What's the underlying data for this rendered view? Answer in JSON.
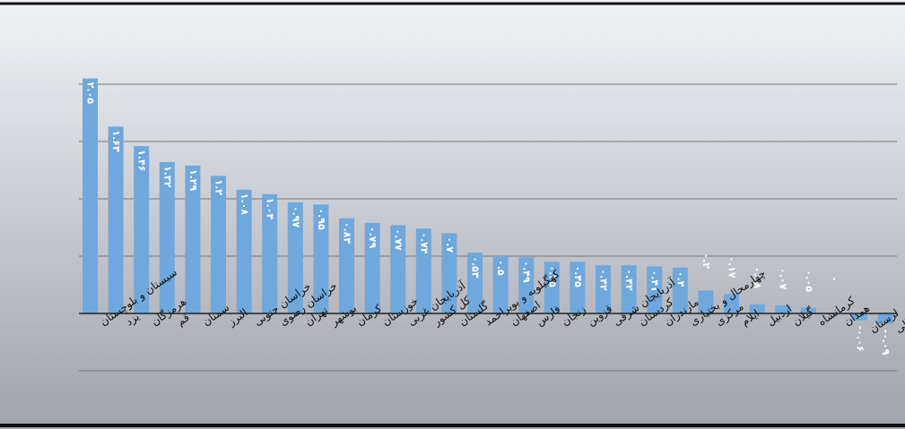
{
  "chart_data": {
    "type": "bar",
    "title": "",
    "xlabel": "",
    "ylabel": "",
    "ylim": [
      -1,
      2.2
    ],
    "grid": true,
    "legend": "none",
    "categories": [
      "سیستان و بلوچستان",
      "یزد",
      "هرمزگان",
      "قم",
      "سمنان",
      "البرز",
      "خراسان جنوبی",
      "خراسان رضوی",
      "تهران",
      "بوشهر",
      "کرمان",
      "خوزستان",
      "آذربایجان غربی",
      "کل کشور",
      "گلستان",
      "کهگیلویه و بویراحمد",
      "اصفهان",
      "فارس",
      "زنجان",
      "قزوین",
      "آذربایجان شرقی",
      "کردستان",
      "مازندران",
      "چهارمحال و بختیاری",
      "مرکزی",
      "ایلام",
      "اردبیل",
      "گیلان",
      "کرمانشاه",
      "همدان",
      "لرستان",
      "خراسان شمالی"
    ],
    "values": [
      2.05,
      1.63,
      1.46,
      1.32,
      1.29,
      1.2,
      1.08,
      1.04,
      0.97,
      0.95,
      0.83,
      0.79,
      0.77,
      0.74,
      0.7,
      0.53,
      0.5,
      0.49,
      0.45,
      0.45,
      0.42,
      0.42,
      0.41,
      0.4,
      0.2,
      0.17,
      0.08,
      0.07,
      0.05,
      0.0,
      -0.06,
      -0.09
    ],
    "value_labels": [
      "۲.۰۵",
      "۱.۶۳",
      "۱.۴۶",
      "۱.۳۲",
      "۱.۲۹",
      "۱.۲",
      "۱.۰۸",
      "۱.۰۴",
      "۰.۹۷",
      "۰.۹۵",
      "۰.۸۳",
      "۰.۷۹",
      "۰.۷۷",
      "۰.۷۴",
      "۰.۷",
      "۰.۵۳",
      "۰.۵",
      "۰.۴۹",
      "۰.۴۵",
      "۰.۴۵",
      "۰.۴۲",
      "۰.۴۲",
      "۰.۴۱",
      "۰.۴",
      "۰.۲",
      "۰.۱۷",
      "۰.۰۸",
      "۰.۰۷",
      "۰.۰۵",
      "۰",
      "-۰.۰۶",
      "-۰.۰۹"
    ],
    "bar_color": "#6fa8dc",
    "background_top": "#f0f2f6",
    "background_bottom": "#9fa3aa"
  }
}
